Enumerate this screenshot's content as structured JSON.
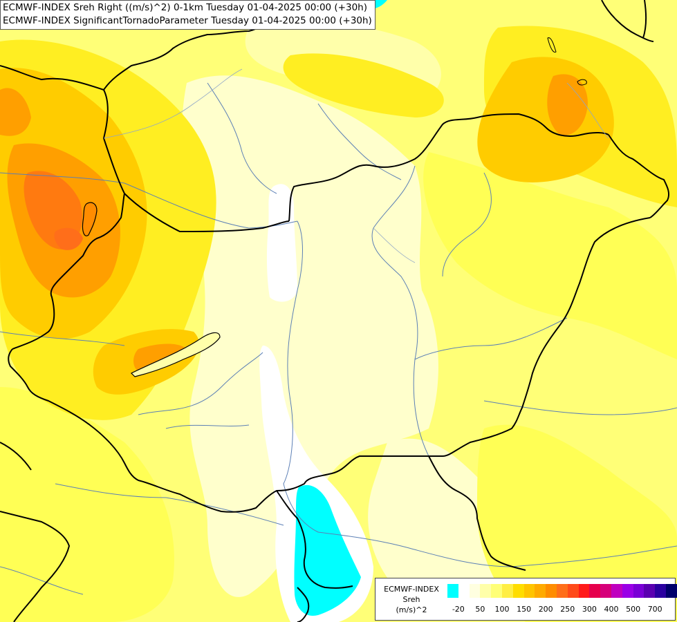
{
  "header": {
    "line1": "ECMWF-INDEX Sreh Right ((m/s)^2) 0-1km Tuesday 01-04-2025 00:00 (+30h)",
    "line2": "ECMWF-INDEX SignificantTornadoParameter Tuesday 01-04-2025 00:00 (+30h)"
  },
  "legend": {
    "source": "ECMWF-INDEX",
    "variable": "Sreh",
    "unit": "(m/s)^2",
    "colors": [
      "#00ffff",
      "#ffffff",
      "#ffffe0",
      "#ffffaa",
      "#ffff77",
      "#ffee44",
      "#ffdd00",
      "#ffc400",
      "#ffaa00",
      "#ff8c00",
      "#ff6e1a",
      "#ff4a1a",
      "#ff1a1a",
      "#e6004c",
      "#d6007a",
      "#bf00bf",
      "#9a00e6",
      "#7a00d6",
      "#5a00b0",
      "#2a00a0",
      "#00006a"
    ],
    "tick_labels": [
      "-20",
      "50",
      "100",
      "150",
      "200",
      "250",
      "300",
      "400",
      "500",
      "700"
    ]
  },
  "map": {
    "field_colors": {
      "pale": "#ffffcc",
      "light": "#ffff99",
      "yellow": "#ffff55",
      "gold": "#ffee22",
      "amber": "#ffcc00",
      "orange": "#ff9f00",
      "dark_orange": "#ff7a10",
      "white": "#ffffff",
      "cyan": "#00ffff"
    }
  }
}
